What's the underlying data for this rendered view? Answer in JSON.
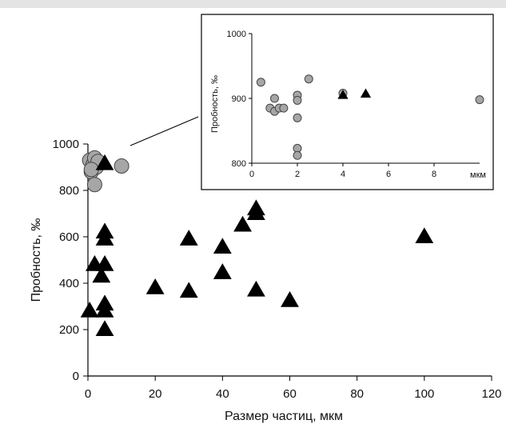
{
  "chart_data": [
    {
      "id": "main",
      "type": "scatter",
      "xlabel": "Размер частиц, мкм",
      "ylabel": "Пробность, ‰",
      "xlim": [
        0,
        120
      ],
      "ylim": [
        0,
        1000
      ],
      "x_ticks": [
        "0",
        "20",
        "40",
        "60",
        "80",
        "100",
        "120"
      ],
      "y_ticks": [
        "0",
        "200",
        "400",
        "600",
        "800",
        "1000"
      ],
      "grid": false,
      "legend": "none",
      "series": [
        {
          "marker": "circle",
          "color": "#a6a6a6",
          "points": [
            [
              0.5,
              930
            ],
            [
              1,
              880
            ],
            [
              1.5,
              910
            ],
            [
              2,
              940
            ],
            [
              2.5,
              900
            ],
            [
              3,
              925
            ],
            [
              1,
              890
            ],
            [
              2,
              825
            ],
            [
              10,
              905
            ]
          ]
        },
        {
          "marker": "triangle",
          "color": "#000000",
          "points": [
            [
              0.5,
              280
            ],
            [
              2,
              480
            ],
            [
              4,
              430
            ],
            [
              5,
              480
            ],
            [
              5,
              200
            ],
            [
              5,
              280
            ],
            [
              5,
              310
            ],
            [
              5,
              590
            ],
            [
              5,
              620
            ],
            [
              5,
              915
            ],
            [
              20,
              380
            ],
            [
              30,
              590
            ],
            [
              30,
              365
            ],
            [
              40,
              555
            ],
            [
              40,
              445
            ],
            [
              46,
              650
            ],
            [
              50,
              700
            ],
            [
              50,
              720
            ],
            [
              50,
              370
            ],
            [
              60,
              325
            ],
            [
              100,
              600
            ]
          ]
        }
      ]
    },
    {
      "id": "inset",
      "type": "scatter",
      "ylabel": "Пробность, ‰",
      "x_unit": "мкм",
      "xlim": [
        0,
        10
      ],
      "ylim": [
        800,
        1000
      ],
      "x_ticks": [
        "0",
        "2",
        "4",
        "6",
        "8"
      ],
      "y_ticks": [
        "800",
        "900",
        "1000"
      ],
      "grid": false,
      "series": [
        {
          "marker": "circle",
          "color": "#a6a6a6",
          "points": [
            [
              0.4,
              925
            ],
            [
              0.8,
              885
            ],
            [
              1,
              900
            ],
            [
              1,
              880
            ],
            [
              1.2,
              885
            ],
            [
              1.4,
              885
            ],
            [
              2,
              905
            ],
            [
              2,
              897
            ],
            [
              2,
              870
            ],
            [
              2,
              823
            ],
            [
              2,
              812
            ],
            [
              2.5,
              930
            ],
            [
              4,
              908
            ],
            [
              10,
              898
            ]
          ]
        },
        {
          "marker": "triangle",
          "color": "#000000",
          "points": [
            [
              4,
              905
            ],
            [
              5,
              907
            ]
          ]
        }
      ]
    }
  ]
}
